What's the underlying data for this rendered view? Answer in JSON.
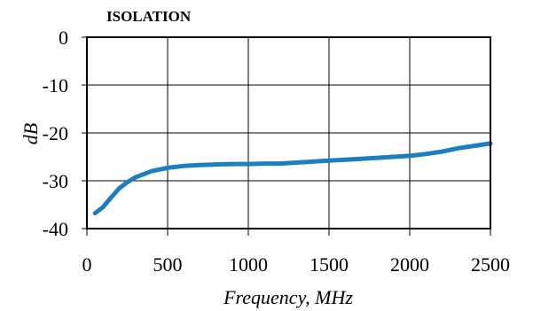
{
  "chart_data": {
    "type": "line",
    "title": "ISOLATION",
    "xlabel": "Frequency, MHz",
    "ylabel": "dB",
    "xlim": [
      0,
      2500
    ],
    "ylim": [
      -40,
      0
    ],
    "xticks": [
      0,
      500,
      1000,
      1500,
      2000,
      2500
    ],
    "yticks": [
      0,
      -10,
      -20,
      -30,
      -40
    ],
    "grid": true,
    "line_color": "#1a7fc1",
    "series": [
      {
        "x": [
          50,
          100,
          150,
          200,
          250,
          300,
          400,
          500,
          600,
          700,
          800,
          900,
          1000,
          1100,
          1200,
          1300,
          1400,
          1500,
          1600,
          1700,
          1800,
          1900,
          2000,
          2100,
          2200,
          2300,
          2400,
          2500
        ],
        "values": [
          -36.8,
          -35.5,
          -33.5,
          -31.6,
          -30.3,
          -29.3,
          -28.0,
          -27.3,
          -26.9,
          -26.7,
          -26.6,
          -26.5,
          -26.5,
          -26.4,
          -26.4,
          -26.2,
          -26.0,
          -25.8,
          -25.6,
          -25.4,
          -25.2,
          -25.0,
          -24.8,
          -24.4,
          -23.9,
          -23.2,
          -22.7,
          -22.2
        ]
      }
    ]
  }
}
